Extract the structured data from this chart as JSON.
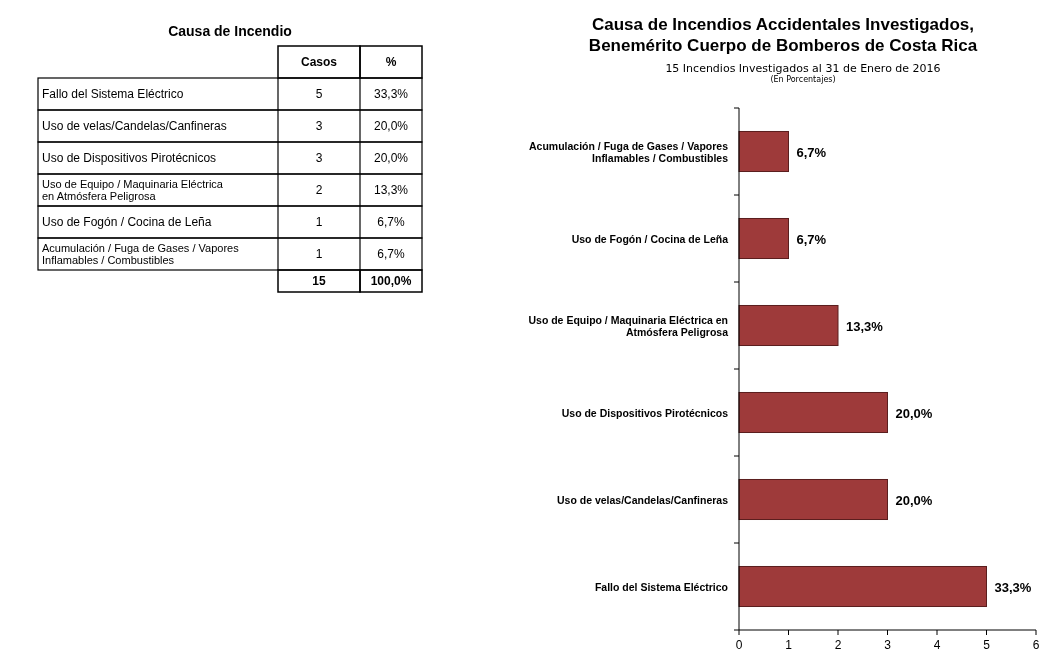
{
  "chart_data": [
    {
      "type": "other",
      "title": "Causa de Incendio",
      "categories": [
        "Casos",
        "%"
      ],
      "y_categories": [
        "Fallo del Sistema Eléctrico",
        "Uso de velas/Candelas/Canfineras",
        "Uso de Dispositivos Pirotécnicos",
        "Uso de Equipo / Maquinaria Eléctrica en Atmósfera Peligrosa",
        "Uso de Fogón / Cocina de Leña",
        "Acumulación / Fuga de Gases / Vapores Inflamables / Combustibles"
      ],
      "cell_labels": [
        [
          "5",
          "33,3%"
        ],
        [
          "3",
          "20,0%"
        ],
        [
          "3",
          "20,0%"
        ],
        [
          "2",
          "13,3%"
        ],
        [
          "1",
          "6,7%"
        ],
        [
          "1",
          "6,7%"
        ]
      ],
      "totals": [
        "15",
        "100,0%"
      ]
    },
    {
      "type": "bar",
      "orientation": "horizontal",
      "title": "Causa de Incendios Accidentales Investigados, Benemérito Cuerpo de Bomberos de Costa Rica",
      "subtitle": "15 Incendios Investigados al 31 de Enero de 2016",
      "annotations": [
        "(En Porcentajes)",
        {
          "text": "6,7%",
          "x": 1,
          "y": "Acumulación / Fuga de Gases / Vapores Inflamables / Combustibles"
        },
        {
          "text": "6,7%",
          "x": 1,
          "y": "Uso de Fogón / Cocina de Leña"
        },
        {
          "text": "13,3%",
          "x": 2,
          "y": "Uso de Equipo / Maquinaria Eléctrica en Atmósfera Peligrosa"
        },
        {
          "text": "20,0%",
          "x": 3,
          "y": "Uso de Dispositivos Pirotécnicos"
        },
        {
          "text": "20,0%",
          "x": 3,
          "y": "Uso de velas/Candelas/Canfineras"
        },
        {
          "text": "33,3%",
          "x": 5,
          "y": "Fallo del Sistema Eléctrico"
        }
      ],
      "categories": [
        "Acumulación / Fuga de Gases / Vapores Inflamables / Combustibles",
        "Uso de Fogón / Cocina de Leña",
        "Uso de Equipo / Maquinaria Eléctrica en Atmósfera Peligrosa",
        "Uso de Dispositivos Pirotécnicos",
        "Uso de velas/Candelas/Canfineras",
        "Fallo del Sistema Eléctrico"
      ],
      "values": [
        1,
        1,
        2,
        3,
        3,
        5
      ],
      "color": "#9e3a3a",
      "xlim": [
        0,
        6
      ],
      "xticks": [
        0,
        1,
        2,
        3,
        4,
        5,
        6
      ],
      "grid": false
    }
  ]
}
